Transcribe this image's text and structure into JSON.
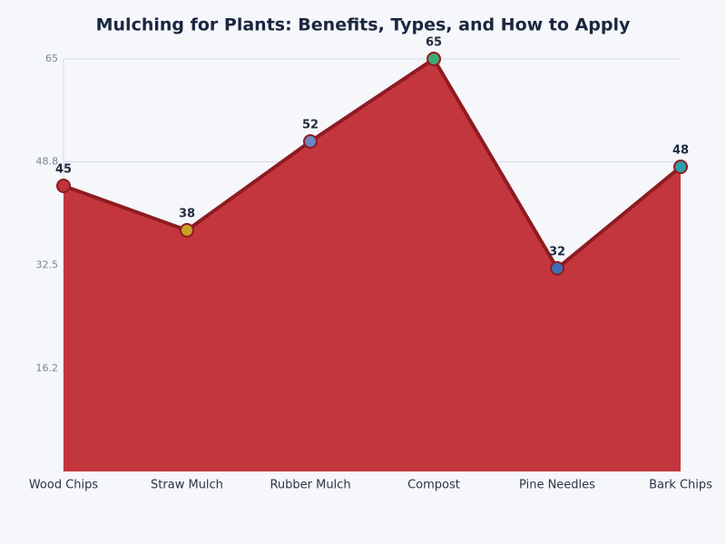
{
  "chart_data": {
    "type": "area",
    "title": "Mulching for Plants: Benefits, Types, and How to Apply",
    "categories": [
      "Wood Chips",
      "Straw Mulch",
      "Rubber Mulch",
      "Compost",
      "Pine Needles",
      "Bark Chips"
    ],
    "values": [
      45,
      38,
      52,
      65,
      32,
      48
    ],
    "color": "#c4363d",
    "line_color": "#8e1b22",
    "point_colors": [
      "#c0343b",
      "#c9a227",
      "#6a86c4",
      "#3fa877",
      "#3b6fb8",
      "#2a9fad"
    ],
    "ylim": [
      0,
      65
    ],
    "yticks": [
      16.2,
      32.5,
      48.8,
      65
    ],
    "grid": true
  }
}
